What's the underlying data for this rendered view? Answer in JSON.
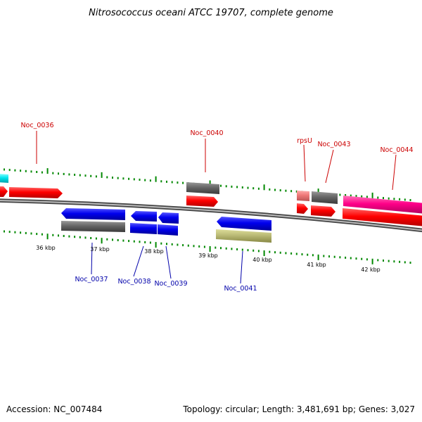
{
  "title": "Nitrosococcus oceani ATCC 19707, complete genome",
  "footer": {
    "accession": "Accession: NC_007484",
    "summary": "Topology: circular; Length: 3,481,691 bp; Genes: 3,027"
  },
  "colors": {
    "forward_label": "#cc0000",
    "reverse_label": "#0000aa",
    "cds": "#ff0000",
    "gene": "#666666",
    "rna": "#ff0088",
    "cds_reverse": "#0000ee",
    "other": "#bbbb77",
    "ticks": "#008800",
    "backbone": "#777777"
  },
  "scale_labels": [
    "36 kbp",
    "37 kbp",
    "38 kbp",
    "39 kbp",
    "40 kbp",
    "41 kbp",
    "42 kbp"
  ],
  "gene_labels": {
    "noc_0036": "Noc_0036",
    "noc_0037": "Noc_0037",
    "noc_0038": "Noc_0038",
    "noc_0039": "Noc_0039",
    "noc_0040": "Noc_0040",
    "noc_0041": "Noc_0041",
    "rpsu": "rpsU",
    "noc_0043": "Noc_0043",
    "noc_0044": "Noc_0044"
  }
}
